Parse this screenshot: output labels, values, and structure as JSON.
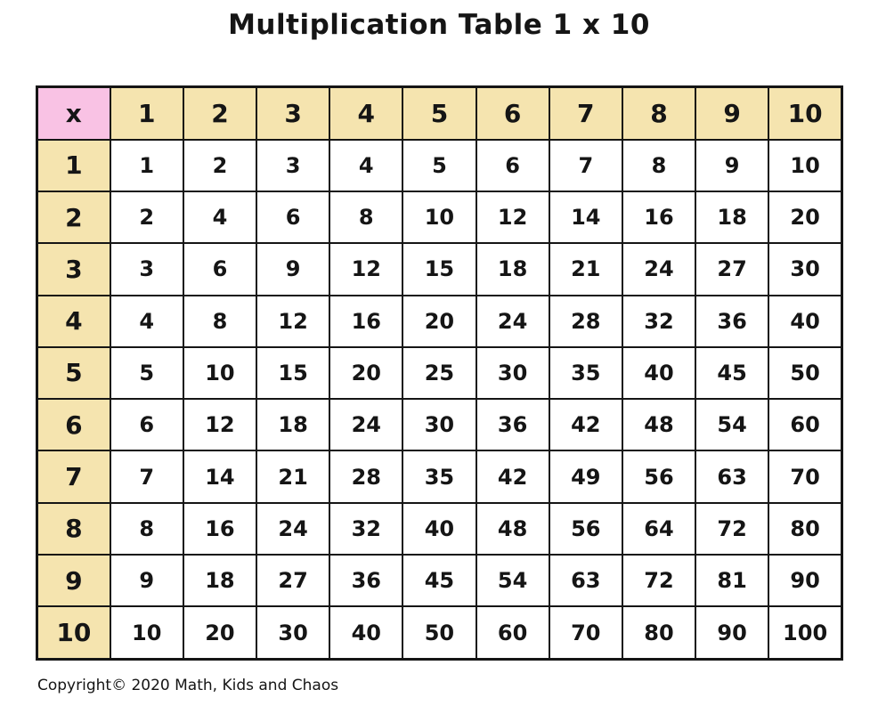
{
  "title": "Multiplication Table 1 x 10",
  "copyright": "Copyright© 2020 Math, Kids and Chaos",
  "colors": {
    "corner_bg": "#F9C2E4",
    "header_bg": "#F5E4AF",
    "cell_bg": "#FFFFFF",
    "border": "#151515",
    "text": "#151515"
  },
  "chart_data": {
    "type": "table",
    "title": "Multiplication Table 1 x 10",
    "corner_label": "x",
    "column_headers": [
      "1",
      "2",
      "3",
      "4",
      "5",
      "6",
      "7",
      "8",
      "9",
      "10"
    ],
    "row_headers": [
      "1",
      "2",
      "3",
      "4",
      "5",
      "6",
      "7",
      "8",
      "9",
      "10"
    ],
    "rows": [
      [
        1,
        2,
        3,
        4,
        5,
        6,
        7,
        8,
        9,
        10
      ],
      [
        2,
        4,
        6,
        8,
        10,
        12,
        14,
        16,
        18,
        20
      ],
      [
        3,
        6,
        9,
        12,
        15,
        18,
        21,
        24,
        27,
        30
      ],
      [
        4,
        8,
        12,
        16,
        20,
        24,
        28,
        32,
        36,
        40
      ],
      [
        5,
        10,
        15,
        20,
        25,
        30,
        35,
        40,
        45,
        50
      ],
      [
        6,
        12,
        18,
        24,
        30,
        36,
        42,
        48,
        54,
        60
      ],
      [
        7,
        14,
        21,
        28,
        35,
        42,
        49,
        56,
        63,
        70
      ],
      [
        8,
        16,
        24,
        32,
        40,
        48,
        56,
        64,
        72,
        80
      ],
      [
        9,
        18,
        27,
        36,
        45,
        54,
        63,
        72,
        81,
        90
      ],
      [
        10,
        20,
        30,
        40,
        50,
        60,
        70,
        80,
        90,
        100
      ]
    ]
  }
}
